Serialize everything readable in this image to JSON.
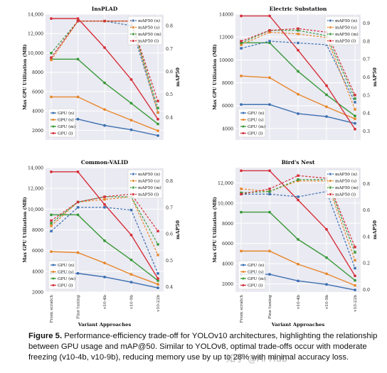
{
  "figure_caption": {
    "label": "Figure 5.",
    "text": " Performance-efficiency trade-off for YOLOv10 architectures, highlighting the relationship between GPU usage and mAP@50.  Similar to YOLOv8, optimal trade-offs occur with moderate freezing (v10-4b, v10-9b), reducing memory use by up to 28% with minimal accuracy loss."
  },
  "watermark": "知乎 @AI Hub",
  "colors": {
    "n": "#3b6fb0",
    "s": "#e8872b",
    "m": "#3a9a3a",
    "l": "#d6303a"
  },
  "chart_data": [
    {
      "type": "line",
      "title": "InsPLAD",
      "xlabel": "",
      "ylabel": "Max GPU Utilization (MB)",
      "y2label": "mAP50",
      "categories": [
        "From scratch",
        "Fine tuning",
        "v10-4b",
        "v10-9b",
        "v10-22b"
      ],
      "ylim": [
        1000,
        14000
      ],
      "yticks": [
        "2000",
        "4000",
        "6000",
        "8000",
        "10,000",
        "12,000",
        "14,000"
      ],
      "y2lim": [
        0.3,
        0.85
      ],
      "y2ticks": [
        "0.4",
        "0.5",
        "0.6",
        "0.7",
        "0.8"
      ],
      "series": [
        {
          "name": "GPU (n)",
          "key": "n",
          "values": [
            3100,
            3150,
            2500,
            2050,
            1450
          ]
        },
        {
          "name": "GPU (s)",
          "key": "s",
          "values": [
            5450,
            5450,
            4150,
            3050,
            1950
          ]
        },
        {
          "name": "GPU (m)",
          "key": "m",
          "values": [
            9350,
            9350,
            6900,
            4800,
            2650
          ]
        },
        {
          "name": "GPU (l)",
          "key": "l",
          "values": [
            13550,
            13550,
            10550,
            7250,
            3150
          ]
        }
      ],
      "map_series": [
        {
          "name": "mAP50 (n)",
          "key": "n",
          "values": [
            0.66,
            0.82,
            0.82,
            0.8,
            0.42
          ]
        },
        {
          "name": "mAP50 (s)",
          "key": "s",
          "values": [
            0.65,
            0.82,
            0.82,
            0.82,
            0.42
          ]
        },
        {
          "name": "mAP50 (m)",
          "key": "m",
          "values": [
            0.68,
            0.82,
            0.82,
            0.82,
            0.44
          ]
        },
        {
          "name": "mAP50 (l)",
          "key": "l",
          "values": [
            0.66,
            0.82,
            0.82,
            0.82,
            0.47
          ]
        }
      ],
      "grid": true
    },
    {
      "type": "line",
      "title": "Electric Substation",
      "xlabel": "",
      "ylabel": "Max GPU Utilization (MB)",
      "y2label": "mAP50",
      "categories": [
        "From scratch",
        "Fine tuning",
        "v10-4b",
        "v10-9b",
        "v10-22b"
      ],
      "ylim": [
        3000,
        14000
      ],
      "yticks": [
        "4000",
        "6000",
        "8000",
        "10000",
        "12000",
        "14000"
      ],
      "y2lim": [
        0.25,
        0.95
      ],
      "y2ticks": [
        "0.3",
        "0.4",
        "0.5",
        "0.6",
        "0.7",
        "0.8",
        "0.9"
      ],
      "series": [
        {
          "name": "GPU (n)",
          "key": "n",
          "values": [
            6100,
            6100,
            5300,
            5050,
            4450
          ]
        },
        {
          "name": "GPU (s)",
          "key": "s",
          "values": [
            8600,
            8450,
            7000,
            5900,
            4850
          ]
        },
        {
          "name": "GPU (m)",
          "key": "m",
          "values": [
            11500,
            11500,
            9000,
            6950,
            5100
          ]
        },
        {
          "name": "GPU (l)",
          "key": "l",
          "values": [
            13850,
            13850,
            10850,
            7750,
            3950
          ]
        }
      ],
      "map_series": [
        {
          "name": "mAP50 (n)",
          "key": "n",
          "values": [
            0.76,
            0.8,
            0.79,
            0.78,
            0.46
          ]
        },
        {
          "name": "mAP50 (s)",
          "key": "s",
          "values": [
            0.78,
            0.85,
            0.84,
            0.82,
            0.42
          ]
        },
        {
          "name": "mAP50 (m)",
          "key": "m",
          "values": [
            0.79,
            0.86,
            0.86,
            0.83,
            0.48
          ]
        },
        {
          "name": "mAP50 (l)",
          "key": "l",
          "values": [
            0.8,
            0.86,
            0.87,
            0.85,
            0.5
          ]
        }
      ],
      "grid": true
    },
    {
      "type": "line",
      "title": "Common-VALID",
      "xlabel": "Variant Approaches",
      "ylabel": "Max GPU Utilization (MB)",
      "y2label": "mAP50",
      "categories": [
        "From scratch",
        "Fine tuning",
        "v10-4b",
        "v10-9b",
        "v10-22b"
      ],
      "ylim": [
        2000,
        14000
      ],
      "yticks": [
        "2000",
        "4000",
        "6000",
        "8000",
        "10,000",
        "12,000",
        "14,000"
      ],
      "y2lim": [
        0.38,
        0.85
      ],
      "y2ticks": [
        "0.4",
        "0.5",
        "0.6",
        "0.7",
        "0.8"
      ],
      "series": [
        {
          "name": "GPU (n)",
          "key": "n",
          "values": [
            3800,
            3800,
            3450,
            2950,
            2400
          ]
        },
        {
          "name": "GPU (s)",
          "key": "s",
          "values": [
            5900,
            5800,
            4800,
            3700,
            2750
          ]
        },
        {
          "name": "GPU (m)",
          "key": "m",
          "values": [
            9450,
            9450,
            6950,
            5100,
            3100
          ]
        },
        {
          "name": "GPU (l)",
          "key": "l",
          "values": [
            13600,
            13600,
            10450,
            7500,
            3300
          ]
        }
      ],
      "map_series": [
        {
          "name": "mAP50 (n)",
          "key": "n",
          "values": [
            0.61,
            0.7,
            0.7,
            0.69,
            0.45
          ]
        },
        {
          "name": "mAP50 (s)",
          "key": "s",
          "values": [
            0.63,
            0.72,
            0.73,
            0.74,
            0.52
          ]
        },
        {
          "name": "mAP50 (m)",
          "key": "m",
          "values": [
            0.64,
            0.72,
            0.74,
            0.74,
            0.56
          ]
        },
        {
          "name": "mAP50 (l)",
          "key": "l",
          "values": [
            0.65,
            0.72,
            0.74,
            0.75,
            0.61
          ]
        }
      ],
      "grid": true
    },
    {
      "type": "line",
      "title": "Bird's Nest",
      "xlabel": "Variant Approaches",
      "ylabel": "Max GPU Utilization (MB)",
      "y2label": "mAP50",
      "categories": [
        "From scratch",
        "Fine tuning",
        "v10-4b",
        "v10-9b",
        "v10-22b"
      ],
      "ylim": [
        1200,
        13500
      ],
      "yticks": [
        "2000",
        "4000",
        "6000",
        "8000",
        "10,000",
        "12,000"
      ],
      "y2lim": [
        -0.02,
        0.92
      ],
      "y2ticks": [
        "0.0",
        "0.2",
        "0.4",
        "0.6",
        "0.8"
      ],
      "series": [
        {
          "name": "GPU (n)",
          "key": "n",
          "values": [
            2950,
            2950,
            2300,
            1950,
            1400
          ]
        },
        {
          "name": "GPU (s)",
          "key": "s",
          "values": [
            5250,
            5250,
            3950,
            3000,
            1850
          ]
        },
        {
          "name": "GPU (m)",
          "key": "m",
          "values": [
            9100,
            9100,
            6400,
            4600,
            2350
          ]
        },
        {
          "name": "GPU (l)",
          "key": "l",
          "values": [
            13200,
            13200,
            10300,
            7400,
            2800
          ]
        }
      ],
      "map_series": [
        {
          "name": "mAP50 (n)",
          "key": "n",
          "values": [
            0.72,
            0.72,
            0.7,
            0.74,
            0.16
          ]
        },
        {
          "name": "mAP50 (s)",
          "key": "s",
          "values": [
            0.76,
            0.74,
            0.82,
            0.82,
            0.22
          ]
        },
        {
          "name": "mAP50 (m)",
          "key": "m",
          "values": [
            0.73,
            0.74,
            0.83,
            0.83,
            0.28
          ]
        },
        {
          "name": "mAP50 (l)",
          "key": "l",
          "values": [
            0.72,
            0.76,
            0.86,
            0.84,
            0.32
          ]
        }
      ],
      "grid": true
    }
  ]
}
